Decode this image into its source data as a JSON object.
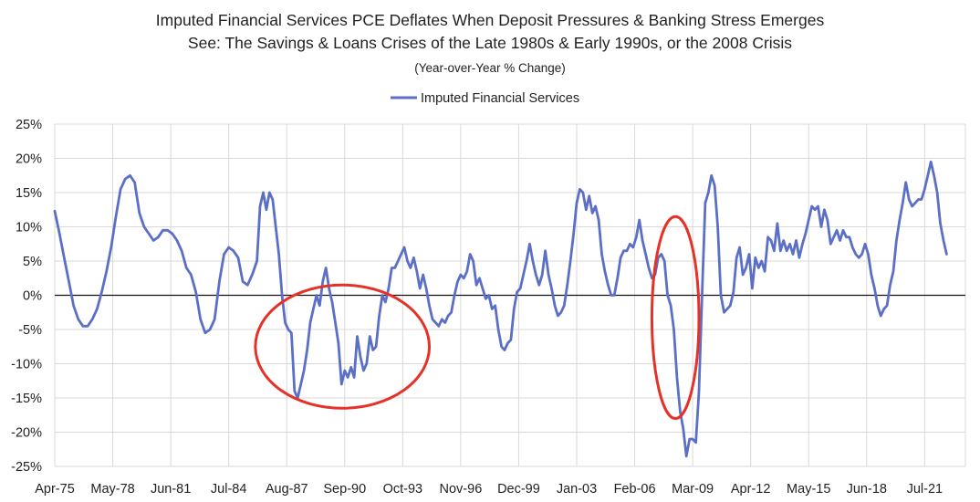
{
  "chart_data": {
    "type": "line",
    "title": [
      "Imputed Financial Services PCE  Deflates When Deposit Pressures & Banking Stress Emerges",
      "See: The Savings & Loans Crises of the Late 1980s & Early 1990s, or the 2008 Crisis"
    ],
    "subtitle": "(Year-over-Year % Change)",
    "legend": {
      "position": "top",
      "entries": [
        "Imputed Financial Services"
      ]
    },
    "xlabel": "",
    "ylabel": "",
    "x_tick_labels": [
      "Apr-75",
      "May-78",
      "Jun-81",
      "Jul-84",
      "Aug-87",
      "Sep-90",
      "Oct-93",
      "Nov-96",
      "Dec-99",
      "Jan-03",
      "Feb-06",
      "Mar-09",
      "Apr-12",
      "May-15",
      "Jun-18",
      "Jul-21"
    ],
    "x_tick_dates": [
      "1975-04",
      "1978-05",
      "1981-06",
      "1984-07",
      "1987-08",
      "1990-09",
      "1993-10",
      "1996-11",
      "1999-12",
      "2003-01",
      "2006-02",
      "2009-03",
      "2012-04",
      "2015-05",
      "2018-06",
      "2021-07"
    ],
    "xlim": [
      "1975-04",
      "2023-09"
    ],
    "ylim": [
      -25,
      25
    ],
    "y_ticks": [
      -25,
      -20,
      -15,
      -10,
      -5,
      0,
      5,
      10,
      15,
      20,
      25
    ],
    "y_tick_labels": [
      "-25%",
      "-20%",
      "-15%",
      "-10%",
      "-5%",
      "0%",
      "5%",
      "10%",
      "15%",
      "20%",
      "25%"
    ],
    "grid": {
      "horizontal": true,
      "vertical": true
    },
    "zero_line": true,
    "series": [
      {
        "name": "Imputed Financial Services",
        "color": "#5B6FC7",
        "points": [
          [
            "1975-04",
            12.3
          ],
          [
            "1975-07",
            9.0
          ],
          [
            "1975-10",
            5.5
          ],
          [
            "1976-01",
            2.0
          ],
          [
            "1976-04",
            -1.5
          ],
          [
            "1976-07",
            -3.5
          ],
          [
            "1976-10",
            -4.5
          ],
          [
            "1977-01",
            -4.5
          ],
          [
            "1977-04",
            -3.5
          ],
          [
            "1977-07",
            -2.0
          ],
          [
            "1977-10",
            0.5
          ],
          [
            "1978-01",
            3.5
          ],
          [
            "1978-04",
            7.0
          ],
          [
            "1978-07",
            11.5
          ],
          [
            "1978-10",
            15.5
          ],
          [
            "1979-01",
            17.0
          ],
          [
            "1979-04",
            17.5
          ],
          [
            "1979-07",
            16.5
          ],
          [
            "1979-10",
            12.0
          ],
          [
            "1980-01",
            10.0
          ],
          [
            "1980-04",
            9.0
          ],
          [
            "1980-07",
            8.0
          ],
          [
            "1980-10",
            8.5
          ],
          [
            "1981-01",
            9.5
          ],
          [
            "1981-04",
            9.5
          ],
          [
            "1981-07",
            9.0
          ],
          [
            "1981-10",
            8.0
          ],
          [
            "1982-01",
            6.5
          ],
          [
            "1982-04",
            4.0
          ],
          [
            "1982-07",
            3.0
          ],
          [
            "1982-10",
            0.5
          ],
          [
            "1983-01",
            -3.5
          ],
          [
            "1983-04",
            -5.5
          ],
          [
            "1983-07",
            -5.0
          ],
          [
            "1983-10",
            -3.5
          ],
          [
            "1984-01",
            2.0
          ],
          [
            "1984-04",
            6.0
          ],
          [
            "1984-07",
            7.0
          ],
          [
            "1984-10",
            6.5
          ],
          [
            "1985-01",
            5.5
          ],
          [
            "1985-04",
            2.0
          ],
          [
            "1985-07",
            1.5
          ],
          [
            "1985-10",
            3.0
          ],
          [
            "1986-01",
            5.0
          ],
          [
            "1986-03",
            13.0
          ],
          [
            "1986-05",
            15.0
          ],
          [
            "1986-07",
            12.5
          ],
          [
            "1986-09",
            15.0
          ],
          [
            "1986-11",
            14.0
          ],
          [
            "1987-01",
            10.0
          ],
          [
            "1987-03",
            6.0
          ],
          [
            "1987-05",
            0.0
          ],
          [
            "1987-07",
            -4.0
          ],
          [
            "1987-09",
            -5.0
          ],
          [
            "1987-11",
            -5.5
          ],
          [
            "1988-01",
            -14.0
          ],
          [
            "1988-03",
            -15.0
          ],
          [
            "1988-05",
            -13.0
          ],
          [
            "1988-07",
            -11.0
          ],
          [
            "1988-09",
            -8.0
          ],
          [
            "1988-11",
            -4.0
          ],
          [
            "1989-01",
            -2.0
          ],
          [
            "1989-03",
            0.0
          ],
          [
            "1989-05",
            -1.5
          ],
          [
            "1989-07",
            2.0
          ],
          [
            "1989-09",
            4.0
          ],
          [
            "1989-11",
            1.0
          ],
          [
            "1990-01",
            -1.0
          ],
          [
            "1990-03",
            -4.0
          ],
          [
            "1990-05",
            -7.0
          ],
          [
            "1990-07",
            -13.0
          ],
          [
            "1990-09",
            -11.0
          ],
          [
            "1990-11",
            -12.0
          ],
          [
            "1991-01",
            -10.5
          ],
          [
            "1991-03",
            -12.0
          ],
          [
            "1991-05",
            -6.0
          ],
          [
            "1991-07",
            -9.0
          ],
          [
            "1991-09",
            -11.0
          ],
          [
            "1991-11",
            -10.0
          ],
          [
            "1992-01",
            -6.0
          ],
          [
            "1992-03",
            -8.0
          ],
          [
            "1992-05",
            -7.5
          ],
          [
            "1992-07",
            -3.0
          ],
          [
            "1992-09",
            0.0
          ],
          [
            "1992-11",
            -1.0
          ],
          [
            "1993-01",
            1.0
          ],
          [
            "1993-03",
            4.0
          ],
          [
            "1993-05",
            4.0
          ],
          [
            "1993-07",
            5.0
          ],
          [
            "1993-09",
            6.0
          ],
          [
            "1993-11",
            7.0
          ],
          [
            "1994-01",
            5.0
          ],
          [
            "1994-03",
            4.0
          ],
          [
            "1994-05",
            5.5
          ],
          [
            "1994-07",
            3.5
          ],
          [
            "1994-09",
            1.0
          ],
          [
            "1994-11",
            3.0
          ],
          [
            "1995-01",
            1.0
          ],
          [
            "1995-03",
            -1.5
          ],
          [
            "1995-05",
            -3.5
          ],
          [
            "1995-07",
            -4.0
          ],
          [
            "1995-09",
            -4.5
          ],
          [
            "1995-11",
            -3.5
          ],
          [
            "1996-01",
            -4.0
          ],
          [
            "1996-03",
            -3.0
          ],
          [
            "1996-05",
            -2.5
          ],
          [
            "1996-07",
            0.0
          ],
          [
            "1996-09",
            2.0
          ],
          [
            "1996-11",
            3.0
          ],
          [
            "1997-01",
            2.5
          ],
          [
            "1997-03",
            3.5
          ],
          [
            "1997-05",
            6.0
          ],
          [
            "1997-07",
            5.0
          ],
          [
            "1997-09",
            1.5
          ],
          [
            "1997-11",
            2.5
          ],
          [
            "1998-01",
            1.0
          ],
          [
            "1998-03",
            -0.5
          ],
          [
            "1998-05",
            0.0
          ],
          [
            "1998-07",
            -2.0
          ],
          [
            "1998-09",
            -1.5
          ],
          [
            "1998-11",
            -5.0
          ],
          [
            "1999-01",
            -7.5
          ],
          [
            "1999-03",
            -8.0
          ],
          [
            "1999-05",
            -7.0
          ],
          [
            "1999-07",
            -6.5
          ],
          [
            "1999-09",
            -2.0
          ],
          [
            "1999-11",
            0.5
          ],
          [
            "2000-01",
            1.0
          ],
          [
            "2000-03",
            3.0
          ],
          [
            "2000-05",
            5.0
          ],
          [
            "2000-07",
            7.5
          ],
          [
            "2000-09",
            5.0
          ],
          [
            "2000-11",
            3.0
          ],
          [
            "2001-01",
            1.5
          ],
          [
            "2001-03",
            3.0
          ],
          [
            "2001-05",
            6.5
          ],
          [
            "2001-07",
            3.0
          ],
          [
            "2001-09",
            1.0
          ],
          [
            "2001-11",
            -1.5
          ],
          [
            "2002-01",
            -3.0
          ],
          [
            "2002-03",
            -2.5
          ],
          [
            "2002-05",
            -1.5
          ],
          [
            "2002-07",
            1.5
          ],
          [
            "2002-09",
            5.0
          ],
          [
            "2002-11",
            9.0
          ],
          [
            "2003-01",
            13.5
          ],
          [
            "2003-03",
            15.5
          ],
          [
            "2003-05",
            15.0
          ],
          [
            "2003-07",
            12.5
          ],
          [
            "2003-09",
            14.5
          ],
          [
            "2003-11",
            12.0
          ],
          [
            "2004-01",
            13.0
          ],
          [
            "2004-03",
            11.0
          ],
          [
            "2004-05",
            6.0
          ],
          [
            "2004-07",
            3.5
          ],
          [
            "2004-09",
            1.5
          ],
          [
            "2004-11",
            0.0
          ],
          [
            "2005-01",
            0.0
          ],
          [
            "2005-03",
            2.5
          ],
          [
            "2005-05",
            5.5
          ],
          [
            "2005-07",
            6.5
          ],
          [
            "2005-09",
            6.5
          ],
          [
            "2005-11",
            7.5
          ],
          [
            "2006-01",
            7.0
          ],
          [
            "2006-03",
            8.5
          ],
          [
            "2006-05",
            11.0
          ],
          [
            "2006-07",
            8.0
          ],
          [
            "2006-09",
            6.0
          ],
          [
            "2006-11",
            4.0
          ],
          [
            "2007-01",
            2.5
          ],
          [
            "2007-03",
            3.0
          ],
          [
            "2007-05",
            5.5
          ],
          [
            "2007-07",
            6.0
          ],
          [
            "2007-09",
            5.0
          ],
          [
            "2007-11",
            0.0
          ],
          [
            "2008-01",
            -1.5
          ],
          [
            "2008-03",
            -5.0
          ],
          [
            "2008-05",
            -12.0
          ],
          [
            "2008-07",
            -17.0
          ],
          [
            "2008-09",
            -19.5
          ],
          [
            "2008-11",
            -23.5
          ],
          [
            "2009-01",
            -21.0
          ],
          [
            "2009-03",
            -21.0
          ],
          [
            "2009-05",
            -21.5
          ],
          [
            "2009-07",
            -14.0
          ],
          [
            "2009-09",
            0.0
          ],
          [
            "2009-11",
            13.5
          ],
          [
            "2010-01",
            15.0
          ],
          [
            "2010-03",
            17.5
          ],
          [
            "2010-05",
            16.0
          ],
          [
            "2010-07",
            10.0
          ],
          [
            "2010-09",
            0.0
          ],
          [
            "2010-11",
            -2.5
          ],
          [
            "2011-01",
            -2.0
          ],
          [
            "2011-03",
            -1.5
          ],
          [
            "2011-05",
            0.5
          ],
          [
            "2011-07",
            5.5
          ],
          [
            "2011-09",
            7.0
          ],
          [
            "2011-11",
            3.0
          ],
          [
            "2012-01",
            4.0
          ],
          [
            "2012-03",
            6.0
          ],
          [
            "2012-05",
            1.0
          ],
          [
            "2012-07",
            5.5
          ],
          [
            "2012-09",
            4.0
          ],
          [
            "2012-11",
            5.0
          ],
          [
            "2013-01",
            3.5
          ],
          [
            "2013-03",
            8.5
          ],
          [
            "2013-05",
            8.0
          ],
          [
            "2013-07",
            6.5
          ],
          [
            "2013-09",
            10.5
          ],
          [
            "2013-11",
            6.5
          ],
          [
            "2014-01",
            8.0
          ],
          [
            "2014-03",
            6.5
          ],
          [
            "2014-05",
            7.5
          ],
          [
            "2014-07",
            6.0
          ],
          [
            "2014-09",
            8.0
          ],
          [
            "2014-11",
            5.5
          ],
          [
            "2015-01",
            7.5
          ],
          [
            "2015-03",
            9.0
          ],
          [
            "2015-05",
            11.0
          ],
          [
            "2015-07",
            13.0
          ],
          [
            "2015-09",
            12.5
          ],
          [
            "2015-11",
            13.0
          ],
          [
            "2016-01",
            10.0
          ],
          [
            "2016-03",
            12.5
          ],
          [
            "2016-05",
            11.0
          ],
          [
            "2016-07",
            7.5
          ],
          [
            "2016-09",
            8.5
          ],
          [
            "2016-11",
            9.5
          ],
          [
            "2017-01",
            8.0
          ],
          [
            "2017-03",
            9.5
          ],
          [
            "2017-05",
            8.5
          ],
          [
            "2017-07",
            8.5
          ],
          [
            "2017-09",
            7.0
          ],
          [
            "2017-11",
            6.0
          ],
          [
            "2018-01",
            5.5
          ],
          [
            "2018-03",
            6.0
          ],
          [
            "2018-05",
            7.5
          ],
          [
            "2018-07",
            6.0
          ],
          [
            "2018-09",
            3.0
          ],
          [
            "2018-11",
            1.0
          ],
          [
            "2019-01",
            -1.5
          ],
          [
            "2019-03",
            -3.0
          ],
          [
            "2019-05",
            -2.0
          ],
          [
            "2019-07",
            -1.5
          ],
          [
            "2019-09",
            1.5
          ],
          [
            "2019-11",
            3.5
          ],
          [
            "2020-01",
            8.0
          ],
          [
            "2020-03",
            11.0
          ],
          [
            "2020-05",
            13.5
          ],
          [
            "2020-07",
            16.5
          ],
          [
            "2020-09",
            14.0
          ],
          [
            "2020-11",
            13.0
          ],
          [
            "2021-01",
            13.5
          ],
          [
            "2021-03",
            14.0
          ],
          [
            "2021-05",
            14.0
          ],
          [
            "2021-07",
            15.5
          ],
          [
            "2021-09",
            17.5
          ],
          [
            "2021-11",
            19.5
          ],
          [
            "2022-01",
            17.5
          ],
          [
            "2022-03",
            15.0
          ],
          [
            "2022-05",
            10.5
          ],
          [
            "2022-07",
            8.0
          ],
          [
            "2022-09",
            6.0
          ]
        ]
      }
    ],
    "annotations": [
      {
        "type": "ellipse",
        "color": "#E53228",
        "x_range": [
          "1985-12",
          "1995-03"
        ],
        "y_range": [
          -16.5,
          1.5
        ]
      },
      {
        "type": "ellipse",
        "color": "#E53228",
        "x_range": [
          "2007-01",
          "2009-07"
        ],
        "y_range": [
          -18,
          11.5
        ]
      }
    ]
  }
}
